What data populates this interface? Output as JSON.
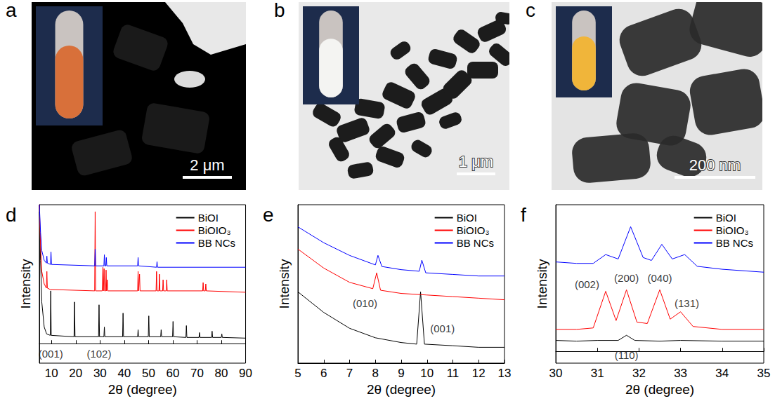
{
  "images": [
    {
      "label": "a",
      "scale_bar": "2 μm"
    },
    {
      "label": "b",
      "scale_bar": "1 μm"
    },
    {
      "label": "c",
      "scale_bar": "200 nm"
    }
  ],
  "chart_data": [
    {
      "panel": "d",
      "type": "line",
      "xlabel": "2θ (degree)",
      "ylabel": "Intensity",
      "xlim": [
        5,
        90
      ],
      "xticks": [
        10,
        20,
        30,
        40,
        50,
        60,
        70,
        80,
        90
      ],
      "ylim": [
        -14,
        100
      ],
      "tick_labels": "x",
      "legend": "upper right",
      "series": [
        {
          "name": "BiOI",
          "color": "#000000",
          "x": [
            5,
            5.5,
            6,
            7,
            8,
            9.5,
            9.7,
            9.9,
            19.3,
            19.5,
            19.7,
            29.4,
            29.6,
            29.8,
            31.6,
            31.8,
            32,
            39.3,
            39.5,
            39.7,
            45.5,
            45.7,
            45.9,
            49.9,
            50.1,
            50.3,
            55,
            55.2,
            55.4,
            59.9,
            60.1,
            60.3,
            65.4,
            65.6,
            65.8,
            70.8,
            71,
            71.2,
            76,
            76.2,
            76.4,
            80,
            80.2,
            80.4,
            90
          ],
          "values": [
            95,
            60,
            30,
            12,
            7,
            6,
            38,
            6,
            5,
            30,
            5,
            5,
            28,
            5,
            5,
            12,
            5,
            5,
            22,
            5,
            5,
            10,
            5,
            5,
            20,
            5,
            5,
            10,
            5,
            5,
            16,
            5,
            4.5,
            13,
            4.5,
            4.5,
            8,
            4.5,
            4.5,
            9,
            4.5,
            4.5,
            7,
            4.5,
            4
          ]
        },
        {
          "name": "BiOIO₃",
          "color": "#ff0000",
          "x": [
            5,
            5.5,
            6,
            7,
            7.9,
            8.1,
            8.3,
            9.5,
            27.8,
            28,
            28.2,
            30.9,
            31.2,
            31.4,
            31.5,
            31.7,
            31.9,
            32.3,
            32.5,
            32.7,
            32.8,
            33,
            33.2,
            45.5,
            45.7,
            45.9,
            46.1,
            46.3,
            46.5,
            53.1,
            53.3,
            53.5,
            54.3,
            54.5,
            54.7,
            55.8,
            56,
            56.2,
            57.3,
            57.5,
            57.7,
            72.3,
            72.5,
            72.7,
            73.4,
            73.6,
            73.8,
            90
          ],
          "values": [
            100,
            70,
            52,
            43,
            40,
            52,
            40,
            39,
            38,
            95,
            38,
            38,
            55,
            38,
            38,
            54,
            38,
            38,
            53,
            38,
            38,
            46,
            38,
            38,
            52,
            38,
            38,
            50,
            38,
            38,
            52,
            38,
            38,
            50,
            38,
            38,
            46,
            38,
            38,
            46,
            38,
            38,
            44,
            38,
            38,
            43,
            38,
            37
          ]
        },
        {
          "name": "BB NCs",
          "color": "#0000ff",
          "x": [
            5,
            5.5,
            6,
            7,
            7.9,
            8.1,
            8.3,
            9.6,
            9.8,
            10,
            27.8,
            28,
            28.2,
            31.6,
            31.8,
            32,
            32.4,
            32.6,
            32.8,
            45.5,
            45.7,
            45.9,
            53.3,
            53.5,
            53.7,
            90
          ],
          "values": [
            100,
            80,
            67,
            60,
            58,
            63,
            58,
            57,
            66,
            57,
            56,
            68,
            56,
            56,
            64,
            56,
            56,
            62,
            56,
            56,
            62,
            56,
            55,
            59,
            55,
            55
          ]
        }
      ],
      "annotations": [
        {
          "text": "(001)",
          "x": 9.7,
          "y": -7
        },
        {
          "text": "(102)",
          "x": 29.6,
          "y": -7
        }
      ]
    },
    {
      "panel": "e",
      "type": "line",
      "xlabel": "2θ (degree)",
      "ylabel": "Intensity",
      "xlim": [
        5,
        13
      ],
      "xticks": [
        5,
        6,
        7,
        8,
        9,
        10,
        11,
        12,
        13
      ],
      "ylim": [
        0,
        100
      ],
      "tick_labels": "x",
      "legend": "upper right",
      "series": [
        {
          "name": "BiOI",
          "color": "#000000",
          "x": [
            5,
            6,
            7,
            8,
            9,
            9.6,
            9.75,
            9.9,
            11,
            12,
            13
          ],
          "values": [
            45,
            32,
            22,
            16,
            13,
            12,
            45,
            12,
            11,
            10,
            10
          ]
        },
        {
          "name": "BiOIO₃",
          "color": "#ff0000",
          "x": [
            5,
            6,
            7,
            7.9,
            8.05,
            8.2,
            9,
            10,
            11,
            12,
            13
          ],
          "values": [
            72,
            60,
            51,
            47,
            57,
            46,
            44,
            43,
            42,
            41,
            40
          ]
        },
        {
          "name": "BB NCs",
          "color": "#0000ff",
          "x": [
            5,
            6,
            7,
            8,
            8.1,
            8.25,
            9,
            9.7,
            9.8,
            9.95,
            11,
            12,
            13
          ],
          "values": [
            86,
            76,
            68,
            62,
            68,
            61,
            59,
            58,
            65,
            57,
            56,
            55,
            55
          ]
        }
      ],
      "annotations": [
        {
          "text": "(010)",
          "x": 7.6,
          "y": 38
        },
        {
          "text": "(001)",
          "x": 10.6,
          "y": 22
        }
      ]
    },
    {
      "panel": "f",
      "type": "line",
      "xlabel": "2θ (degree)",
      "ylabel": "Intensity",
      "xlim": [
        30,
        35
      ],
      "xticks": [
        30,
        31,
        32,
        33,
        34,
        35
      ],
      "ylim": [
        -8,
        100
      ],
      "tick_labels": "x",
      "legend": "upper right",
      "series": [
        {
          "name": "BiOI",
          "color": "#000000",
          "x": [
            30,
            30.5,
            31,
            31.5,
            31.7,
            31.9,
            32.5,
            33,
            34,
            35
          ],
          "values": [
            7.5,
            7,
            7.5,
            7.5,
            11,
            7.5,
            7,
            7.5,
            7,
            7
          ]
        },
        {
          "name": "BiOIO₃",
          "color": "#ff0000",
          "x": [
            30,
            30.5,
            30.9,
            31.2,
            31.45,
            31.7,
            31.95,
            32.2,
            32.5,
            32.75,
            33,
            33.3,
            34,
            35
          ],
          "values": [
            15,
            15,
            16,
            41,
            21,
            42,
            20,
            19,
            42,
            22,
            27,
            17,
            15,
            15
          ]
        },
        {
          "name": "BB NCs",
          "color": "#0000ff",
          "x": [
            30,
            30.5,
            30.9,
            31.2,
            31.5,
            31.8,
            32.1,
            32.3,
            32.55,
            32.8,
            33.1,
            33.4,
            34,
            35
          ],
          "values": [
            61,
            60,
            60,
            66,
            63,
            85,
            64,
            62,
            73,
            63,
            66,
            58,
            56,
            54
          ]
        }
      ],
      "annotations": [
        {
          "text": "(002)",
          "x": 30.75,
          "y": 46
        },
        {
          "text": "(200)",
          "x": 31.7,
          "y": 50
        },
        {
          "text": "(040)",
          "x": 32.5,
          "y": 50
        },
        {
          "text": "(131)",
          "x": 33.15,
          "y": 33
        },
        {
          "text": "(110)",
          "x": 31.7,
          "y": -2.5
        }
      ]
    }
  ]
}
